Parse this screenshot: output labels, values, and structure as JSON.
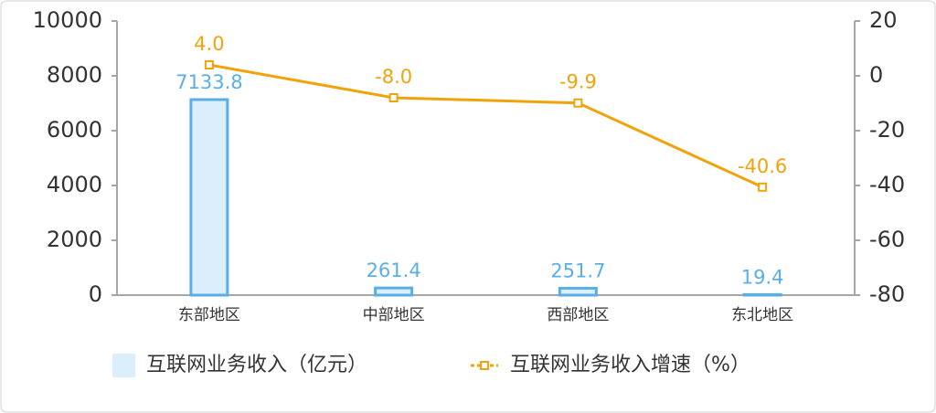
{
  "chart_data": {
    "type": "bar",
    "categories": [
      "东部地区",
      "中部地区",
      "西部地区",
      "东北地区"
    ],
    "series": [
      {
        "name": "互联网业务收入（亿元）",
        "type": "bar",
        "color": "#dbeefb",
        "edge_color": "#5aaee8",
        "values": [
          7133.8,
          261.4,
          251.7,
          19.4
        ]
      },
      {
        "name": "互联网业务收入增速（%）",
        "type": "line",
        "axis": "y2",
        "color": "#f0a30a",
        "values": [
          4.0,
          -8.0,
          -9.9,
          -40.6
        ],
        "value_labels": [
          "4.0",
          "-8.0",
          "-9.9",
          "-40.6"
        ]
      }
    ],
    "ylim": [
      0,
      10000
    ],
    "yticks": [
      0,
      2000,
      4000,
      6000,
      8000,
      10000
    ],
    "y2lim": [
      -80,
      20
    ],
    "y2ticks": [
      -80,
      -60,
      -40,
      -20,
      0,
      20
    ],
    "grid": false,
    "legend": "bottom"
  }
}
